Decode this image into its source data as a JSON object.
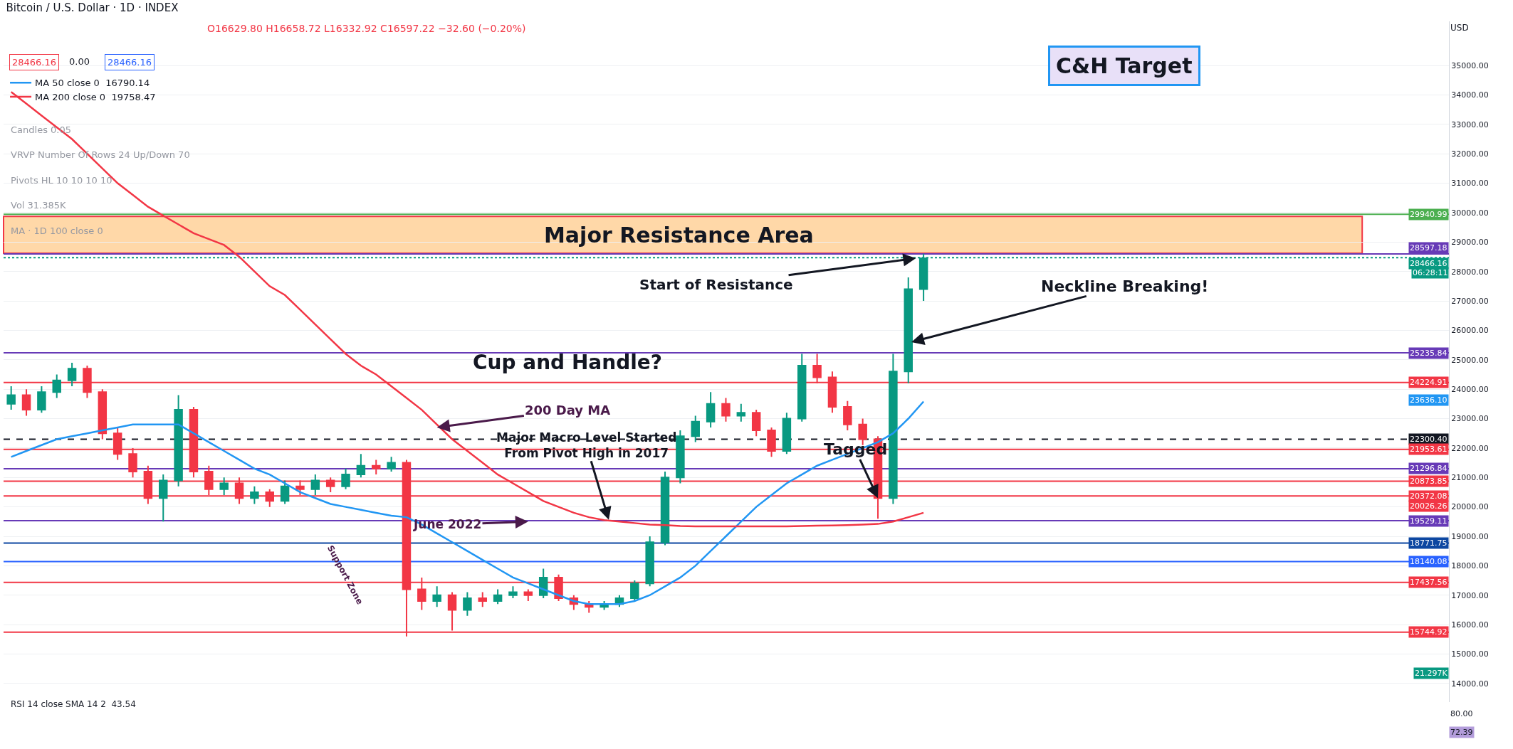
{
  "chart_data": [
    {
      "type": "candlestick",
      "title": "Bitcoin / U.S. Dollar · 1D · INDEX",
      "subtitle": "O16629.80 H16658.72 L16332.92 C16597.22 −32.60 (−0.20%)",
      "categories": [
        null,
        null,
        null,
        null,
        null,
        null,
        null,
        null,
        null,
        null,
        null,
        null,
        null,
        null,
        null,
        null,
        null,
        null,
        null,
        null,
        null,
        null,
        null,
        null,
        null,
        null,
        null,
        null,
        null,
        null,
        null,
        null,
        null,
        null,
        null,
        null,
        null,
        null,
        null,
        null,
        null,
        null,
        null,
        null,
        null,
        null,
        null,
        null,
        null,
        null,
        null,
        null,
        null,
        null,
        null,
        null,
        null,
        null,
        null,
        null,
        null
      ],
      "ohlc": [
        [
          23500,
          24100,
          23300,
          23800
        ],
        [
          23800,
          24000,
          23100,
          23300
        ],
        [
          23300,
          24100,
          23200,
          23900
        ],
        [
          23900,
          24500,
          23700,
          24300
        ],
        [
          24300,
          24900,
          24100,
          24700
        ],
        [
          24700,
          24800,
          23700,
          23900
        ],
        [
          23900,
          24000,
          22300,
          22500
        ],
        [
          22500,
          22700,
          21600,
          21800
        ],
        [
          21800,
          22000,
          21000,
          21200
        ],
        [
          21200,
          21400,
          20100,
          20300
        ],
        [
          20300,
          21100,
          19500,
          20900
        ],
        [
          20900,
          23800,
          20700,
          23300
        ],
        [
          23300,
          23400,
          21000,
          21200
        ],
        [
          21200,
          21400,
          20400,
          20600
        ],
        [
          20600,
          21000,
          20400,
          20800
        ],
        [
          20800,
          21000,
          20100,
          20300
        ],
        [
          20300,
          20700,
          20100,
          20500
        ],
        [
          20500,
          20600,
          20000,
          20200
        ],
        [
          20200,
          20900,
          20100,
          20700
        ],
        [
          20700,
          20900,
          20400,
          20600
        ],
        [
          20600,
          21100,
          20400,
          20900
        ],
        [
          20900,
          21000,
          20500,
          20700
        ],
        [
          20700,
          21300,
          20600,
          21100
        ],
        [
          21100,
          21800,
          21000,
          21400
        ],
        [
          21400,
          21600,
          21100,
          21300
        ],
        [
          21300,
          21700,
          21200,
          21500
        ],
        [
          21500,
          21600,
          15600,
          17200
        ],
        [
          17200,
          17600,
          16500,
          16800
        ],
        [
          16800,
          17300,
          16600,
          17000
        ],
        [
          17000,
          17100,
          15800,
          16500
        ],
        [
          16500,
          17100,
          16300,
          16900
        ],
        [
          16900,
          17100,
          16600,
          16800
        ],
        [
          16800,
          17200,
          16700,
          17000
        ],
        [
          17000,
          17300,
          16900,
          17100
        ],
        [
          17100,
          17200,
          16800,
          17000
        ],
        [
          17000,
          17900,
          16900,
          17600
        ],
        [
          17600,
          17700,
          16800,
          16900
        ],
        [
          16900,
          17000,
          16500,
          16700
        ],
        [
          16700,
          16800,
          16400,
          16600
        ],
        [
          16600,
          16800,
          16500,
          16700
        ],
        [
          16700,
          17000,
          16600,
          16900
        ],
        [
          16900,
          17500,
          16800,
          17400
        ],
        [
          17400,
          19000,
          17300,
          18800
        ],
        [
          18800,
          21200,
          18700,
          21000
        ],
        [
          21000,
          22600,
          20800,
          22400
        ],
        [
          22400,
          23100,
          22200,
          22900
        ],
        [
          22900,
          23900,
          22700,
          23500
        ],
        [
          23500,
          23700,
          22900,
          23100
        ],
        [
          23100,
          23500,
          22900,
          23200
        ],
        [
          23200,
          23300,
          22400,
          22600
        ],
        [
          22600,
          22700,
          21700,
          21900
        ],
        [
          21900,
          23200,
          21800,
          23000
        ],
        [
          23000,
          25200,
          22900,
          24800
        ],
        [
          24800,
          25200,
          24200,
          24400
        ],
        [
          24400,
          24600,
          23200,
          23400
        ],
        [
          23400,
          23600,
          22600,
          22800
        ],
        [
          22800,
          23000,
          22100,
          22300
        ],
        [
          22300,
          22400,
          19600,
          20300
        ],
        [
          20300,
          25200,
          20100,
          24600
        ],
        [
          24600,
          27800,
          24200,
          27400
        ],
        [
          27400,
          28600,
          27000,
          28450
        ]
      ],
      "series": [
        {
          "type": "line",
          "name": "MA 50 close 0  16790.14",
          "color": "#2196f3",
          "values": [
            21700,
            21900,
            22100,
            22300,
            22400,
            22500,
            22600,
            22700,
            22800,
            22800,
            22800,
            22800,
            22500,
            22200,
            21900,
            21600,
            21300,
            21100,
            20800,
            20500,
            20300,
            20100,
            20000,
            19900,
            19800,
            19700,
            19650,
            19400,
            19100,
            18800,
            18500,
            18200,
            17900,
            17600,
            17400,
            17200,
            17000,
            16800,
            16700,
            16700,
            16700,
            16800,
            17000,
            17300,
            17600,
            18000,
            18500,
            19000,
            19500,
            20000,
            20400,
            20800,
            21100,
            21400,
            21600,
            21800,
            22000,
            22200,
            22500,
            23000,
            23580
          ]
        },
        {
          "type": "line",
          "name": "MA 200 close 0  19758.47",
          "color": "#f23645",
          "values": [
            34100,
            33700,
            33300,
            32900,
            32500,
            32000,
            31500,
            31000,
            30600,
            30200,
            29900,
            29600,
            29300,
            29100,
            28900,
            28500,
            28000,
            27500,
            27200,
            26700,
            26200,
            25700,
            25200,
            24800,
            24500,
            24100,
            23700,
            23300,
            22800,
            22300,
            21900,
            21500,
            21100,
            20800,
            20500,
            20200,
            20000,
            19800,
            19650,
            19550,
            19500,
            19450,
            19400,
            19380,
            19350,
            19340,
            19340,
            19340,
            19340,
            19340,
            19340,
            19340,
            19350,
            19360,
            19370,
            19380,
            19400,
            19420,
            19500,
            19650,
            19800
          ]
        }
      ],
      "ylim": [
        13370,
        36500
      ],
      "yticks": [
        {
          "value": 14000,
          "label": "14000.00"
        },
        {
          "value": 15000,
          "label": "15000.00"
        },
        {
          "value": 16000,
          "label": "16000.00"
        },
        {
          "value": 17000,
          "label": "17000.00"
        },
        {
          "value": 18000,
          "label": "18000.00"
        },
        {
          "value": 19000,
          "label": "19000.00"
        },
        {
          "value": 20000,
          "label": "20000.00"
        },
        {
          "value": 21000,
          "label": "21000.00"
        },
        {
          "value": 22000,
          "label": "22000.00"
        },
        {
          "value": 23000,
          "label": "23000.00"
        },
        {
          "value": 24000,
          "label": "24000.00"
        },
        {
          "value": 25000,
          "label": "25000.00"
        },
        {
          "value": 26000,
          "label": "26000.00"
        },
        {
          "value": 27000,
          "label": "27000.00"
        },
        {
          "value": 28000,
          "label": "28000.00"
        },
        {
          "value": 29000,
          "label": "29000.00"
        },
        {
          "value": 30000,
          "label": "30000.00"
        },
        {
          "value": 31000,
          "label": "31000.00"
        },
        {
          "value": 32000,
          "label": "32000.00"
        },
        {
          "value": 33000,
          "label": "33000.00"
        },
        {
          "value": 34000,
          "label": "34000.00"
        },
        {
          "value": 35000,
          "label": "35000.00"
        }
      ],
      "ylabel": "USD",
      "grid": true,
      "legend": "top left",
      "tick_labels": "y",
      "bands": [
        {
          "axis": "y",
          "from": 28620,
          "to": 29870,
          "label": "Major Resistance Area",
          "color": "#ffd8a8"
        }
      ],
      "ref_lines": [
        {
          "axis": "y",
          "value": 29940.99,
          "label": "29940.99",
          "color": "#4caf50"
        },
        {
          "axis": "y",
          "value": 28597.18,
          "label": "28597.18",
          "color": "#673ab7"
        },
        {
          "axis": "y",
          "value": 28466.16,
          "label": "28466.16",
          "color": "#089981",
          "line_style": "dotted"
        },
        {
          "axis": "y",
          "value": 25235.84,
          "label": "25235.84",
          "color": "#673ab7"
        },
        {
          "axis": "y",
          "value": 24224.91,
          "label": "24224.91",
          "color": "#f23645"
        },
        {
          "axis": "y",
          "value": 22300.4,
          "label": "22300.40",
          "color": "#131722",
          "line_style": "dashed"
        },
        {
          "axis": "y",
          "value": 21953.61,
          "label": "21953.61",
          "color": "#f23645"
        },
        {
          "axis": "y",
          "value": 21296.84,
          "label": "21296.84",
          "color": "#673ab7"
        },
        {
          "axis": "y",
          "value": 20873.85,
          "label": "20873.85",
          "color": "#f23645"
        },
        {
          "axis": "y",
          "value": 20372.08,
          "label": "20372.08",
          "color": "#f23645"
        },
        {
          "axis": "y",
          "value": 19529.11,
          "label": "19529.11",
          "color": "#673ab7"
        },
        {
          "axis": "y",
          "value": 18771.75,
          "label": "18771.75",
          "color": "#0d47a1"
        },
        {
          "axis": "y",
          "value": 18140.08,
          "label": "18140.08",
          "color": "#2962ff"
        },
        {
          "axis": "y",
          "value": 17437.56,
          "label": "17437.56",
          "color": "#f23645"
        },
        {
          "axis": "y",
          "value": 15744.92,
          "label": "15744.92",
          "color": "#f23645"
        }
      ],
      "annotations": [
        "C&H Target",
        "Start of Resistance",
        "Neckline Breaking!",
        "Cup and Handle?",
        "200 Day MA",
        "Major Macro Level Started\nFrom Pivot High in 2017",
        "June 2022",
        "Tagged",
        "Support Zone",
        "06:28:11",
        "23636.10",
        "20026.26",
        "21.297K",
        "28466.16",
        "0.00",
        "28466.16",
        "Candles 0.05",
        "VRVP Number Of Rows 24 Up/Down 70",
        "Pivots HL 10 10 10 10",
        "Vol 31.385K",
        "MA · 1D 100 close 0"
      ]
    },
    {
      "type": "other",
      "title": "RSI 14 close SMA 14 2  43.54",
      "annotations": [
        "80.00",
        "72.39"
      ]
    }
  ]
}
